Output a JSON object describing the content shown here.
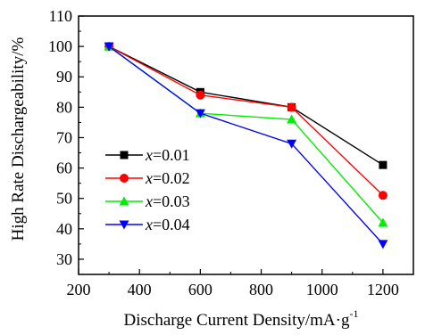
{
  "chart_data": {
    "type": "line",
    "xlabel": "Discharge Current Density/mA·g",
    "xlabel_superscript": "-1",
    "ylabel": "High Rate Dischargeability/%",
    "xlim": [
      200,
      1300
    ],
    "ylim": [
      25,
      110
    ],
    "xticks": [
      200,
      400,
      600,
      800,
      1000,
      1200
    ],
    "yticks": [
      30,
      40,
      50,
      60,
      70,
      80,
      90,
      100,
      110
    ],
    "grid": false,
    "legend_position": "lower-left",
    "series": [
      {
        "name_var": "x",
        "name_value": "=0.01",
        "color": "#000000",
        "marker": "square",
        "x": [
          300,
          600,
          900,
          1200
        ],
        "y": [
          100,
          85,
          80,
          61
        ]
      },
      {
        "name_var": "x",
        "name_value": "=0.02",
        "color": "#ff0000",
        "marker": "circle",
        "x": [
          300,
          600,
          900,
          1200
        ],
        "y": [
          100,
          84,
          80,
          51
        ]
      },
      {
        "name_var": "x",
        "name_value": "=0.03",
        "color": "#00ee00",
        "marker": "triangle-up",
        "x": [
          300,
          600,
          900,
          1200
        ],
        "y": [
          100,
          78,
          76,
          42
        ]
      },
      {
        "name_var": "x",
        "name_value": "=0.04",
        "color": "#0000ff",
        "marker": "triangle-down",
        "x": [
          300,
          600,
          900,
          1200
        ],
        "y": [
          100,
          78,
          68,
          35
        ]
      }
    ]
  }
}
